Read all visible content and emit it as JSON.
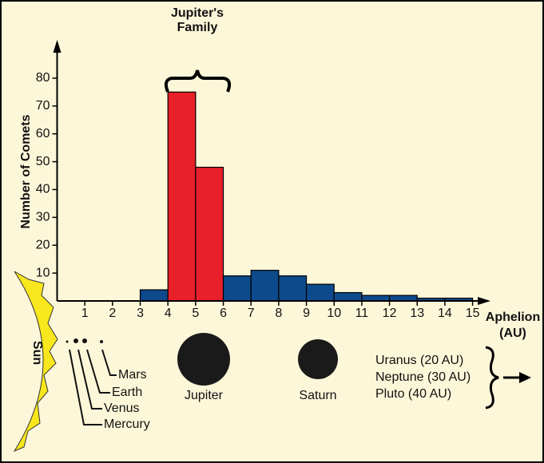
{
  "chart_data": {
    "type": "histogram",
    "title": [
      "Jupiter's",
      "Family"
    ],
    "y_label": "Number of Comets",
    "x_label": [
      "Aphelion",
      "(AU)"
    ],
    "bins": [
      0,
      1,
      2,
      3,
      4,
      5,
      6,
      7,
      8,
      9,
      10,
      11,
      12,
      13,
      14,
      15
    ],
    "values": [
      0,
      0,
      0,
      4,
      75,
      48,
      9,
      11,
      9,
      6,
      3,
      2,
      2,
      1,
      1
    ],
    "colors": [
      "#0d4a8c",
      "#0d4a8c",
      "#0d4a8c",
      "#0d4a8c",
      "#e8202a",
      "#e8202a",
      "#0d4a8c",
      "#0d4a8c",
      "#0d4a8c",
      "#0d4a8c",
      "#0d4a8c",
      "#0d4a8c",
      "#0d4a8c",
      "#0d4a8c",
      "#0d4a8c"
    ],
    "xlim": [
      0,
      15.3
    ],
    "xticks": [
      1,
      2,
      3,
      4,
      5,
      6,
      7,
      8,
      9,
      10,
      11,
      12,
      13,
      14,
      15
    ],
    "ylim": [
      0,
      90
    ],
    "yticks": [
      10,
      20,
      30,
      40,
      50,
      60,
      70,
      80
    ],
    "annotations": {
      "sun": "Sun",
      "mars": "Mars",
      "earth": "Earth",
      "venus": "Venus",
      "mercury": "Mercury",
      "jupiter": "Jupiter",
      "saturn": "Saturn",
      "outer": [
        "Uranus (20 AU)",
        "Neptune (30 AU)",
        "Pluto (40 AU)"
      ]
    }
  }
}
